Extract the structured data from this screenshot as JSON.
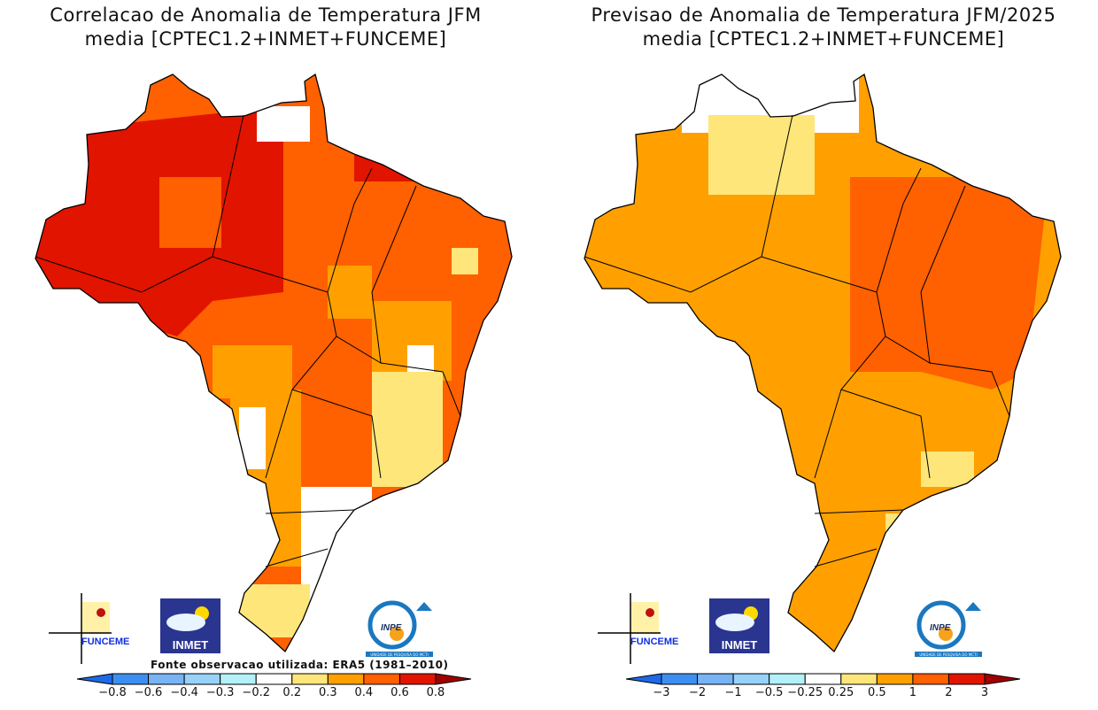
{
  "left_panel": {
    "title_line1": "Correlacao de Anomalia de Temperatura JFM",
    "title_line2": "media [CPTEC1.2+INMET+FUNCEME]",
    "source_note": "Fonte observacao utilizada: ERA5 (1981–2010)",
    "colorbar": {
      "labels": [
        "−0.8",
        "−0.6",
        "−0.4",
        "−0.3",
        "−0.2",
        "0.2",
        "0.3",
        "0.4",
        "0.6",
        "0.8"
      ],
      "colors": [
        "#1e6ae6",
        "#3c8ff0",
        "#78b4f5",
        "#96d2fa",
        "#b4f0fa",
        "#ffffff",
        "#ffe67a",
        "#ffa000",
        "#ff6000",
        "#e11400",
        "#a00000"
      ]
    }
  },
  "right_panel": {
    "title_line1": "Previsao de Anomalia de Temperatura JFM/2025",
    "title_line2": "media [CPTEC1.2+INMET+FUNCEME]",
    "colorbar": {
      "labels": [
        "−3",
        "−2",
        "−1",
        "−0.5",
        "−0.25",
        "0.25",
        "0.5",
        "1",
        "2",
        "3"
      ],
      "colors": [
        "#1e6ae6",
        "#3c8ff0",
        "#78b4f5",
        "#96d2fa",
        "#b4f0fa",
        "#ffffff",
        "#ffe67a",
        "#ffa000",
        "#ff6000",
        "#e11400",
        "#a00000"
      ]
    }
  },
  "logos": {
    "funceme": "FUNCEME",
    "inmet": "INMET",
    "inpe": "INPE",
    "inpe_sub": "UNIDADE DE PESQUISA DO MCTI"
  }
}
